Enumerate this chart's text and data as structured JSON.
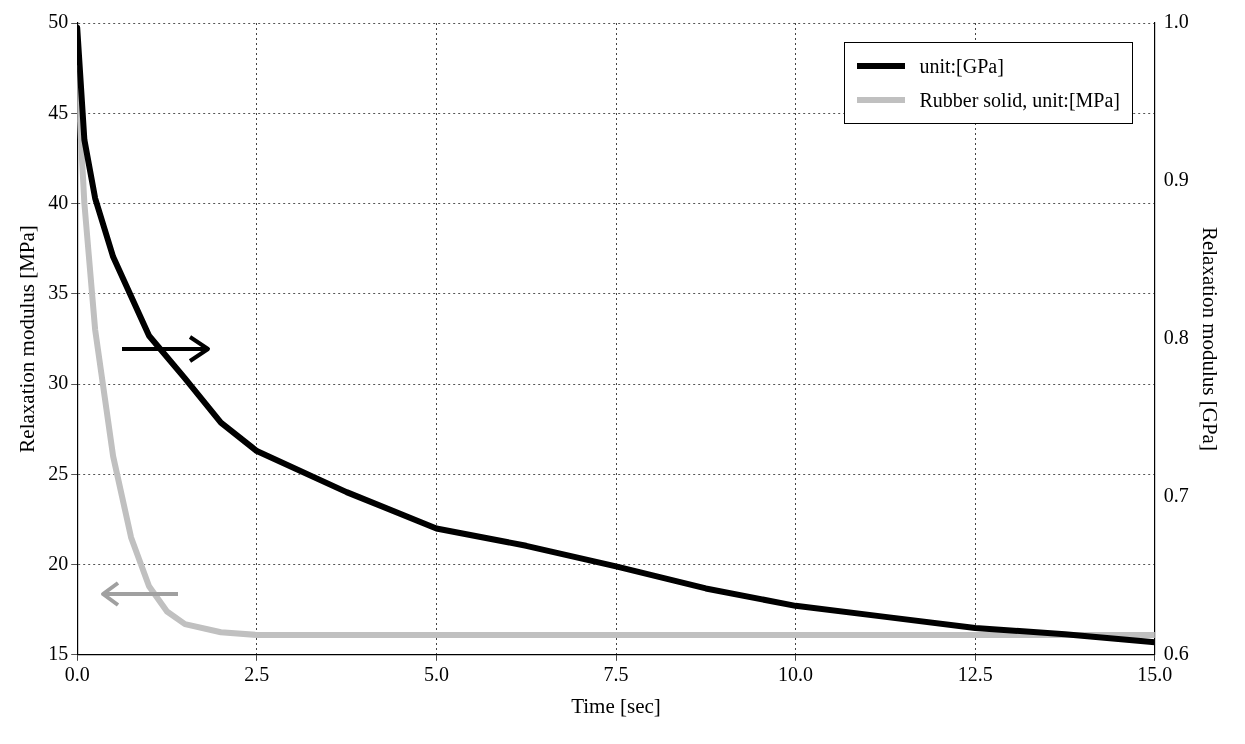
{
  "chart_data": {
    "type": "line",
    "xlabel": "Time [sec]",
    "ylabel": "Relaxation modulus [MPa]",
    "y2label": "Relaxation modulus [GPa]",
    "xlim": [
      0,
      15
    ],
    "xticks": [
      {
        "value": 0,
        "label": "0.0"
      },
      {
        "value": 2.5,
        "label": "2.5"
      },
      {
        "value": 5,
        "label": "5.0"
      },
      {
        "value": 7.5,
        "label": "7.5"
      },
      {
        "value": 10,
        "label": "10.0"
      },
      {
        "value": 12.5,
        "label": "12.5"
      },
      {
        "value": 15,
        "label": "15.0"
      }
    ],
    "ylim": [
      15,
      50
    ],
    "yticks": [
      15,
      20,
      25,
      30,
      35,
      40,
      45,
      50
    ],
    "y2lim": [
      0.6,
      1.0
    ],
    "y2ticks": [
      0.6,
      0.7,
      0.8,
      0.9,
      {
        "value": 1,
        "label": "1.0"
      }
    ],
    "grid": true,
    "legend": "top right",
    "line_style": "solid",
    "marker": "none",
    "series": [
      {
        "name": "unit:[GPa]",
        "color": "#000000",
        "axis": "y2",
        "x": [
          0,
          0.1,
          0.25,
          0.5,
          1,
          1.5,
          2,
          2.5,
          3.75,
          5,
          6.25,
          7.5,
          8.75,
          10,
          11.25,
          12.5,
          13.75,
          15
        ],
        "values": [
          0.997,
          0.926,
          0.889,
          0.852,
          0.802,
          0.775,
          0.747,
          0.729,
          0.703,
          0.68,
          0.669,
          0.656,
          0.642,
          0.631,
          0.624,
          0.617,
          0.613,
          0.608
        ]
      },
      {
        "name": "Rubber solid, unit:[MPa]",
        "color": "#c0c0c0",
        "axis": "y",
        "x": [
          0,
          0.1,
          0.25,
          0.5,
          0.75,
          1,
          1.25,
          1.5,
          2,
          2.5,
          5,
          10,
          15
        ],
        "values": [
          47.5,
          40,
          33,
          26,
          21.5,
          18.8,
          17.4,
          16.7,
          16.25,
          16.1,
          16.1,
          16.1,
          16.1
        ]
      }
    ]
  }
}
